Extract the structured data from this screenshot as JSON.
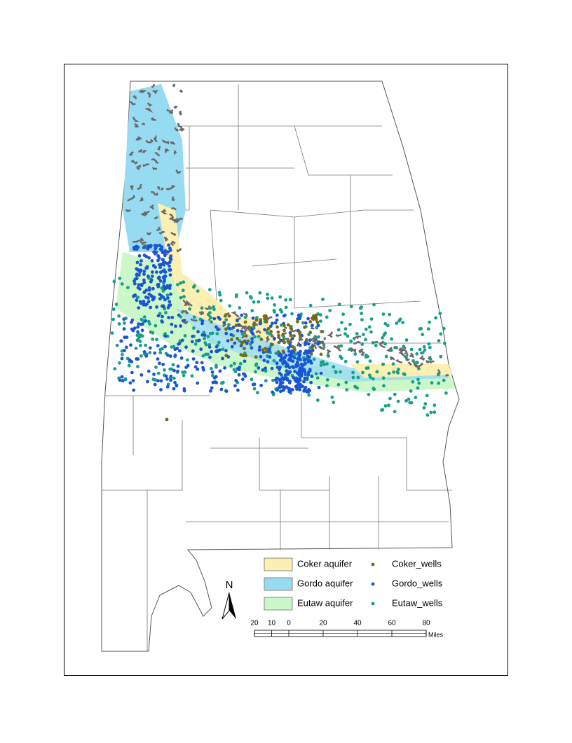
{
  "map": {
    "aquifers": [
      {
        "label": "Coker aquifer",
        "color": "#fbefb1"
      },
      {
        "label": "Gordo aquifer",
        "color": "#97dbf2"
      },
      {
        "label": "Eutaw aquifer",
        "color": "#ccf7c8"
      }
    ],
    "wells": [
      {
        "label": "Coker_wells",
        "color": "#7a6a10"
      },
      {
        "label": "Gordo_wells",
        "color": "#1a55d6"
      },
      {
        "label": "Eutaw_wells",
        "color": "#16a08c"
      }
    ],
    "north_label": "N",
    "scale_bar": {
      "ticks": [
        {
          "value": -20,
          "label": "20"
        },
        {
          "value": -10,
          "label": "10"
        },
        0,
        20,
        40,
        60,
        80
      ],
      "unit": "Miles"
    }
  }
}
